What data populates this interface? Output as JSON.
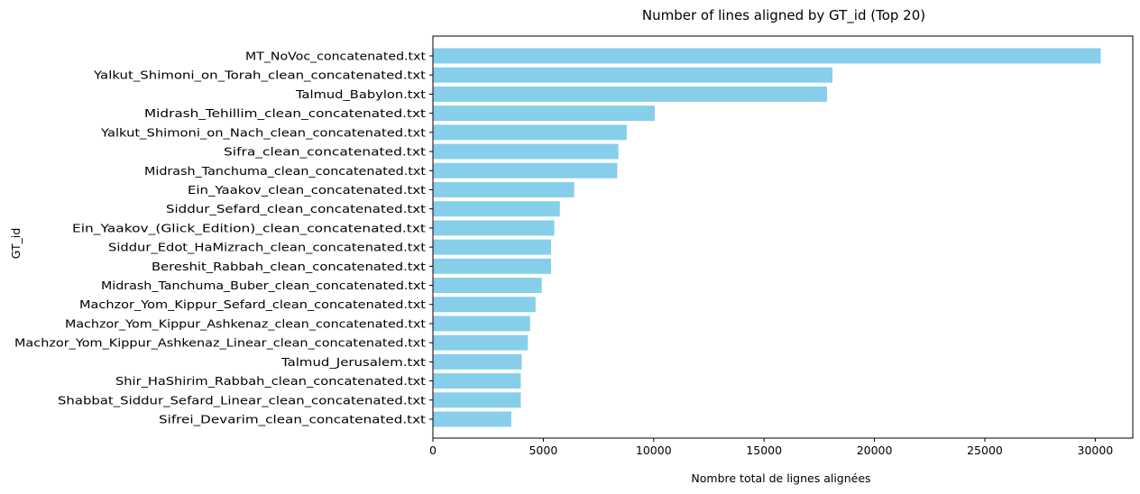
{
  "chart_data": {
    "type": "bar",
    "orientation": "horizontal",
    "title": "Number of lines aligned by GT_id (Top 20)",
    "xlabel": "Nombre total de lignes alignées",
    "ylabel": "GT_id",
    "xlim": [
      0,
      31700
    ],
    "xticks": [
      0,
      5000,
      10000,
      15000,
      20000,
      25000,
      30000
    ],
    "grid": false,
    "bar_color": "#87CEEB",
    "categories": [
      "MT_NoVoc_concatenated.txt",
      "Yalkut_Shimoni_on_Torah_clean_concatenated.txt",
      "Talmud_Babylon.txt",
      "Midrash_Tehillim_clean_concatenated.txt",
      "Yalkut_Shimoni_on_Nach_clean_concatenated.txt",
      "Sifra_clean_concatenated.txt",
      "Midrash_Tanchuma_clean_concatenated.txt",
      "Ein_Yaakov_clean_concatenated.txt",
      "Siddur_Sefard_clean_concatenated.txt",
      "Ein_Yaakov_(Glick_Edition)_clean_concatenated.txt",
      "Siddur_Edot_HaMizrach_clean_concatenated.txt",
      "Bereshit_Rabbah_clean_concatenated.txt",
      "Midrash_Tanchuma_Buber_clean_concatenated.txt",
      "Machzor_Yom_Kippur_Sefard_clean_concatenated.txt",
      "Machzor_Yom_Kippur_Ashkenaz_clean_concatenated.txt",
      "Machzor_Yom_Kippur_Ashkenaz_Linear_clean_concatenated.txt",
      "Talmud_Jerusalem.txt",
      "Shir_HaShirim_Rabbah_clean_concatenated.txt",
      "Shabbat_Siddur_Sefard_Linear_clean_concatenated.txt",
      "Sifrei_Devarim_clean_concatenated.txt"
    ],
    "values": [
      30250,
      18100,
      17850,
      10050,
      8780,
      8400,
      8350,
      6400,
      5750,
      5500,
      5350,
      5350,
      4930,
      4650,
      4400,
      4300,
      4020,
      3980,
      3980,
      3550
    ]
  }
}
